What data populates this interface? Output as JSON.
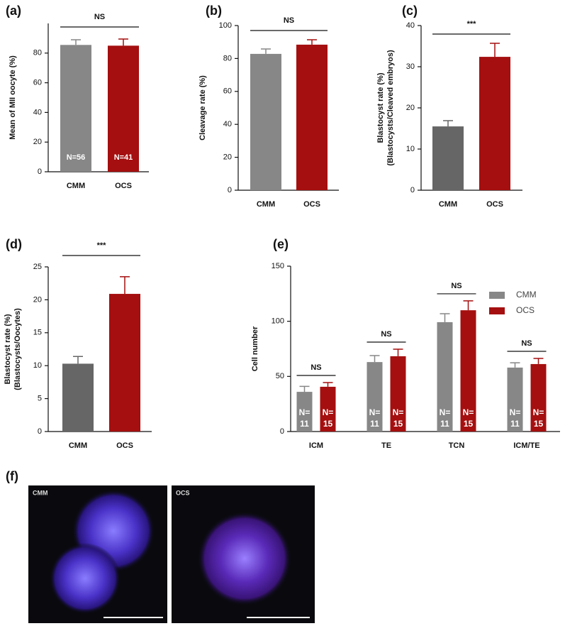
{
  "chart_data": [
    {
      "type": "bar",
      "panel_label": "(a)",
      "ylabel": [
        "Mean of MII oocyte (%)"
      ],
      "categories": [
        "CMM",
        "OCS"
      ],
      "values": [
        85.5,
        85.0
      ],
      "errors": [
        3.5,
        4.5
      ],
      "colors": [
        "#878787",
        "#a50f0f"
      ],
      "annotations": [
        "N=56",
        "N=41"
      ],
      "significance": "NS",
      "ylim": [
        0,
        100
      ],
      "yticks": [
        0,
        20,
        40,
        60,
        80
      ]
    },
    {
      "type": "bar",
      "panel_label": "(b)",
      "ylabel": [
        "Cleavage rate (%)"
      ],
      "categories": [
        "CMM",
        "OCS"
      ],
      "values": [
        82.8,
        88.4
      ],
      "errors": [
        3,
        3
      ],
      "colors": [
        "#878787",
        "#a50f0f"
      ],
      "significance": "NS",
      "ylim": [
        0,
        100
      ],
      "yticks": [
        0,
        20,
        40,
        60,
        80,
        100
      ]
    },
    {
      "type": "bar",
      "panel_label": "(c)",
      "ylabel": [
        "Blastocyst rate (%)",
        "(Blastocysts/Cleaved embryos)"
      ],
      "categories": [
        "CMM",
        "OCS"
      ],
      "values": [
        15.5,
        32.4
      ],
      "errors": [
        1.4,
        3.3
      ],
      "colors": [
        "#666666",
        "#a50f0f"
      ],
      "significance": "***",
      "ylim": [
        0,
        40
      ],
      "yticks": [
        0,
        10,
        20,
        30,
        40
      ]
    },
    {
      "type": "bar",
      "panel_label": "(d)",
      "ylabel": [
        "Blastocyst rate (%)",
        "(Blastocysts/Oocytes)"
      ],
      "categories": [
        "CMM",
        "OCS"
      ],
      "values": [
        10.3,
        20.9
      ],
      "errors": [
        1.1,
        2.6
      ],
      "colors": [
        "#666666",
        "#a50f0f"
      ],
      "significance": "***",
      "ylim": [
        0,
        25
      ],
      "yticks": [
        0,
        5,
        10,
        15,
        20,
        25
      ]
    },
    {
      "type": "grouped_bar",
      "panel_label": "(e)",
      "ylabel": [
        "Cell number"
      ],
      "categories": [
        "ICM",
        "TE",
        "TCN",
        "ICM/TE"
      ],
      "series": [
        {
          "name": "CMM",
          "color": "#878787",
          "values": [
            36,
            63,
            99.2,
            58
          ],
          "errors": [
            5,
            5.9,
            7.7,
            4.4
          ],
          "annotations": [
            [
              "N=",
              "11"
            ],
            [
              "N=",
              "11"
            ],
            [
              "N=",
              "11"
            ],
            [
              "N=",
              "11"
            ]
          ]
        },
        {
          "name": "OCS",
          "color": "#a50f0f",
          "values": [
            40.6,
            68.3,
            110,
            61.2
          ],
          "errors": [
            3.8,
            6.4,
            8.5,
            5.1
          ],
          "annotations": [
            [
              "N=",
              "15"
            ],
            [
              "N=",
              "15"
            ],
            [
              "N=",
              "15"
            ],
            [
              "N=",
              "15"
            ]
          ]
        }
      ],
      "significance": [
        "NS",
        "NS",
        "NS",
        "NS"
      ],
      "ylim": [
        0,
        150
      ],
      "yticks": [
        0,
        50,
        100,
        150
      ],
      "legend": "top-right"
    }
  ],
  "image_panel": {
    "panel_label": "(f)",
    "images": [
      "CMM",
      "OCS"
    ]
  }
}
